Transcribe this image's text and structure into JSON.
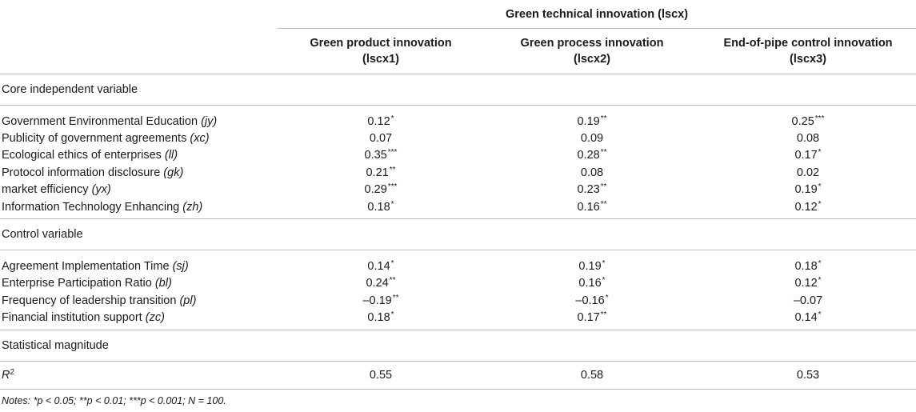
{
  "table": {
    "super_header": "Green technical innovation (lscx)",
    "columns": [
      {
        "name": "Green product innovation",
        "code": "(lscx1)"
      },
      {
        "name": "Green process innovation",
        "code": "(lscx2)"
      },
      {
        "name": "End-of-pipe control innovation",
        "code": "(lscx3)"
      }
    ],
    "sections": [
      {
        "title": "Core independent variable",
        "rows": [
          {
            "label": "Government Environmental Education",
            "code": "(jy)",
            "cells": [
              {
                "v": "0.12",
                "s": "*"
              },
              {
                "v": "0.19",
                "s": "**"
              },
              {
                "v": "0.25",
                "s": "***"
              }
            ]
          },
          {
            "label": "Publicity of government agreements",
            "code": "(xc)",
            "cells": [
              {
                "v": "0.07",
                "s": ""
              },
              {
                "v": "0.09",
                "s": ""
              },
              {
                "v": "0.08",
                "s": ""
              }
            ]
          },
          {
            "label": "Ecological ethics of enterprises",
            "code": "(ll)",
            "cells": [
              {
                "v": "0.35",
                "s": "***"
              },
              {
                "v": "0.28",
                "s": "**"
              },
              {
                "v": "0.17",
                "s": "*"
              }
            ]
          },
          {
            "label": "Protocol information disclosure",
            "code": "(gk)",
            "cells": [
              {
                "v": "0.21",
                "s": "**"
              },
              {
                "v": "0.08",
                "s": ""
              },
              {
                "v": "0.02",
                "s": ""
              }
            ]
          },
          {
            "label": "market efficiency",
            "code": "(yx)",
            "cells": [
              {
                "v": "0.29",
                "s": "***"
              },
              {
                "v": "0.23",
                "s": "**"
              },
              {
                "v": "0.19",
                "s": "*"
              }
            ]
          },
          {
            "label": "Information Technology Enhancing",
            "code": "(zh)",
            "cells": [
              {
                "v": "0.18",
                "s": "*"
              },
              {
                "v": "0.16",
                "s": "**"
              },
              {
                "v": "0.12",
                "s": "*"
              }
            ]
          }
        ]
      },
      {
        "title": "Control variable",
        "rows": [
          {
            "label": "Agreement Implementation Time",
            "code": "(sj)",
            "cells": [
              {
                "v": "0.14",
                "s": "*"
              },
              {
                "v": "0.19",
                "s": "*"
              },
              {
                "v": "0.18",
                "s": "*"
              }
            ]
          },
          {
            "label": "Enterprise Participation Ratio",
            "code": "(bl)",
            "cells": [
              {
                "v": "0.24",
                "s": "**"
              },
              {
                "v": "0.16",
                "s": "*"
              },
              {
                "v": "0.12",
                "s": "*"
              }
            ]
          },
          {
            "label": "Frequency of leadership transition",
            "code": "(pl)",
            "cells": [
              {
                "v": "–0.19",
                "s": "**"
              },
              {
                "v": "–0.16",
                "s": "*"
              },
              {
                "v": "–0.07",
                "s": ""
              }
            ]
          },
          {
            "label": "Financial institution support",
            "code": "(zc)",
            "cells": [
              {
                "v": "0.18",
                "s": "*"
              },
              {
                "v": "0.17",
                "s": "**"
              },
              {
                "v": "0.14",
                "s": "*"
              }
            ]
          }
        ]
      }
    ],
    "stat_section": {
      "title": "Statistical magnitude",
      "label_base": "R",
      "label_sup": "2",
      "values": [
        "0.55",
        "0.58",
        "0.53"
      ]
    },
    "notes": "Notes: *p < 0.05; **p < 0.01; ***p < 0.001; N = 100."
  }
}
